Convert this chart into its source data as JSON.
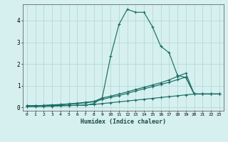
{
  "xlabel": "Humidex (Indice chaleur)",
  "background_color": "#d6f0f0",
  "grid_color": "#b8d8d8",
  "line_color": "#1a6e64",
  "xlim_min": -0.5,
  "xlim_max": 23.5,
  "ylim_min": -0.15,
  "ylim_max": 4.75,
  "xticks": [
    0,
    1,
    2,
    3,
    4,
    5,
    6,
    7,
    8,
    9,
    10,
    11,
    12,
    13,
    14,
    15,
    16,
    17,
    18,
    19,
    20,
    21,
    22,
    23
  ],
  "yticks": [
    0,
    1,
    2,
    3,
    4
  ],
  "series": [
    [
      0.08,
      0.08,
      0.08,
      0.08,
      0.1,
      0.1,
      0.1,
      0.1,
      0.18,
      0.45,
      2.35,
      3.82,
      4.52,
      4.38,
      4.38,
      3.72,
      2.82,
      2.52,
      1.48,
      1.38,
      0.62,
      0.62,
      0.62,
      0.62
    ],
    [
      0.08,
      0.08,
      0.1,
      0.12,
      0.14,
      0.17,
      0.2,
      0.24,
      0.28,
      0.44,
      0.52,
      0.62,
      0.72,
      0.83,
      0.93,
      1.04,
      1.14,
      1.27,
      1.43,
      1.58,
      0.62,
      0.62,
      0.62,
      0.62
    ],
    [
      0.08,
      0.08,
      0.09,
      0.11,
      0.13,
      0.16,
      0.18,
      0.22,
      0.26,
      0.37,
      0.47,
      0.55,
      0.65,
      0.76,
      0.86,
      0.96,
      1.06,
      1.16,
      1.28,
      1.4,
      0.62,
      0.62,
      0.62,
      0.62
    ],
    [
      0.04,
      0.04,
      0.05,
      0.06,
      0.07,
      0.09,
      0.1,
      0.12,
      0.14,
      0.18,
      0.22,
      0.26,
      0.3,
      0.34,
      0.38,
      0.42,
      0.46,
      0.5,
      0.54,
      0.58,
      0.62,
      0.62,
      0.62,
      0.62
    ]
  ]
}
